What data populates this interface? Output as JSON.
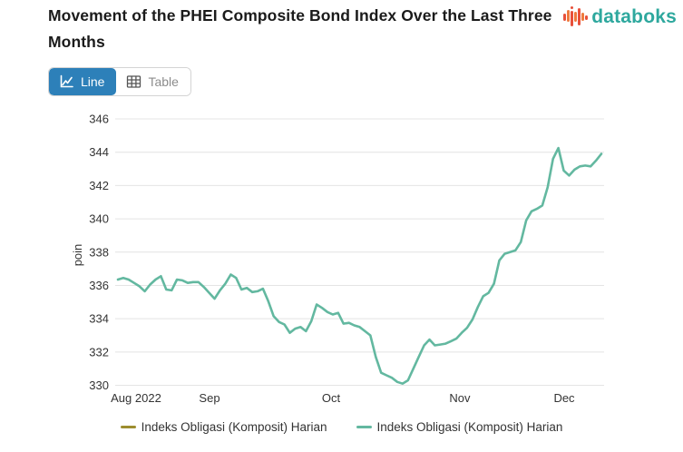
{
  "header": {
    "title": "Movement of the PHEI Composite Bond Index Over the Last Three Months"
  },
  "logo": {
    "text": "databoks",
    "text_color": "#2ea89e",
    "bar_colors": [
      "#e8503a",
      "#ef7a3e"
    ]
  },
  "toolbar": {
    "line_label": "Line",
    "table_label": "Table",
    "active_color": "#2d80b9"
  },
  "chart_data": {
    "type": "line",
    "title": "Movement of the PHEI Composite Bond Index Over the Last Three Months",
    "xlabel": "",
    "ylabel": "poin",
    "ylim": [
      330,
      346
    ],
    "yticks": [
      330,
      332,
      334,
      336,
      338,
      340,
      342,
      344,
      346
    ],
    "grid": true,
    "legend_position": "bottom",
    "xticks": [
      {
        "label": "Aug 2022",
        "pos": 0.0375
      },
      {
        "label": "Sep",
        "pos": 0.1895
      },
      {
        "label": "Oct",
        "pos": 0.4409
      },
      {
        "label": "Nov",
        "pos": 0.7073
      },
      {
        "label": "Dec",
        "pos": 0.9231
      }
    ],
    "series": [
      {
        "name": "Indeks Obligasi (Komposit) Harian",
        "color": "#9d8d2f",
        "drawn_in_plot": false,
        "values": []
      },
      {
        "name": "Indeks Obligasi (Komposit) Harian",
        "color": "#63b8a0",
        "drawn_in_plot": true,
        "values": [
          336.35,
          336.45,
          336.35,
          336.15,
          335.95,
          335.65,
          336.05,
          336.35,
          336.55,
          335.75,
          335.7,
          336.35,
          336.3,
          336.15,
          336.2,
          336.2,
          335.9,
          335.55,
          335.2,
          335.7,
          336.1,
          336.65,
          336.45,
          335.75,
          335.85,
          335.6,
          335.65,
          335.8,
          335.05,
          334.15,
          333.8,
          333.65,
          333.15,
          333.4,
          333.5,
          333.25,
          333.85,
          334.85,
          334.65,
          334.4,
          334.25,
          334.35,
          333.7,
          333.75,
          333.6,
          333.5,
          333.25,
          333.0,
          331.7,
          330.75,
          330.6,
          330.45,
          330.2,
          330.1,
          330.3,
          331.0,
          331.7,
          332.4,
          332.75,
          332.4,
          332.45,
          332.5,
          332.65,
          332.8,
          333.15,
          333.45,
          333.95,
          334.7,
          335.35,
          335.55,
          336.1,
          337.5,
          337.9,
          338.0,
          338.1,
          338.6,
          339.9,
          340.45,
          340.6,
          340.8,
          341.9,
          343.6,
          344.25,
          342.9,
          342.6,
          342.95,
          343.15,
          343.2,
          343.15,
          343.5,
          343.9
        ]
      }
    ]
  }
}
